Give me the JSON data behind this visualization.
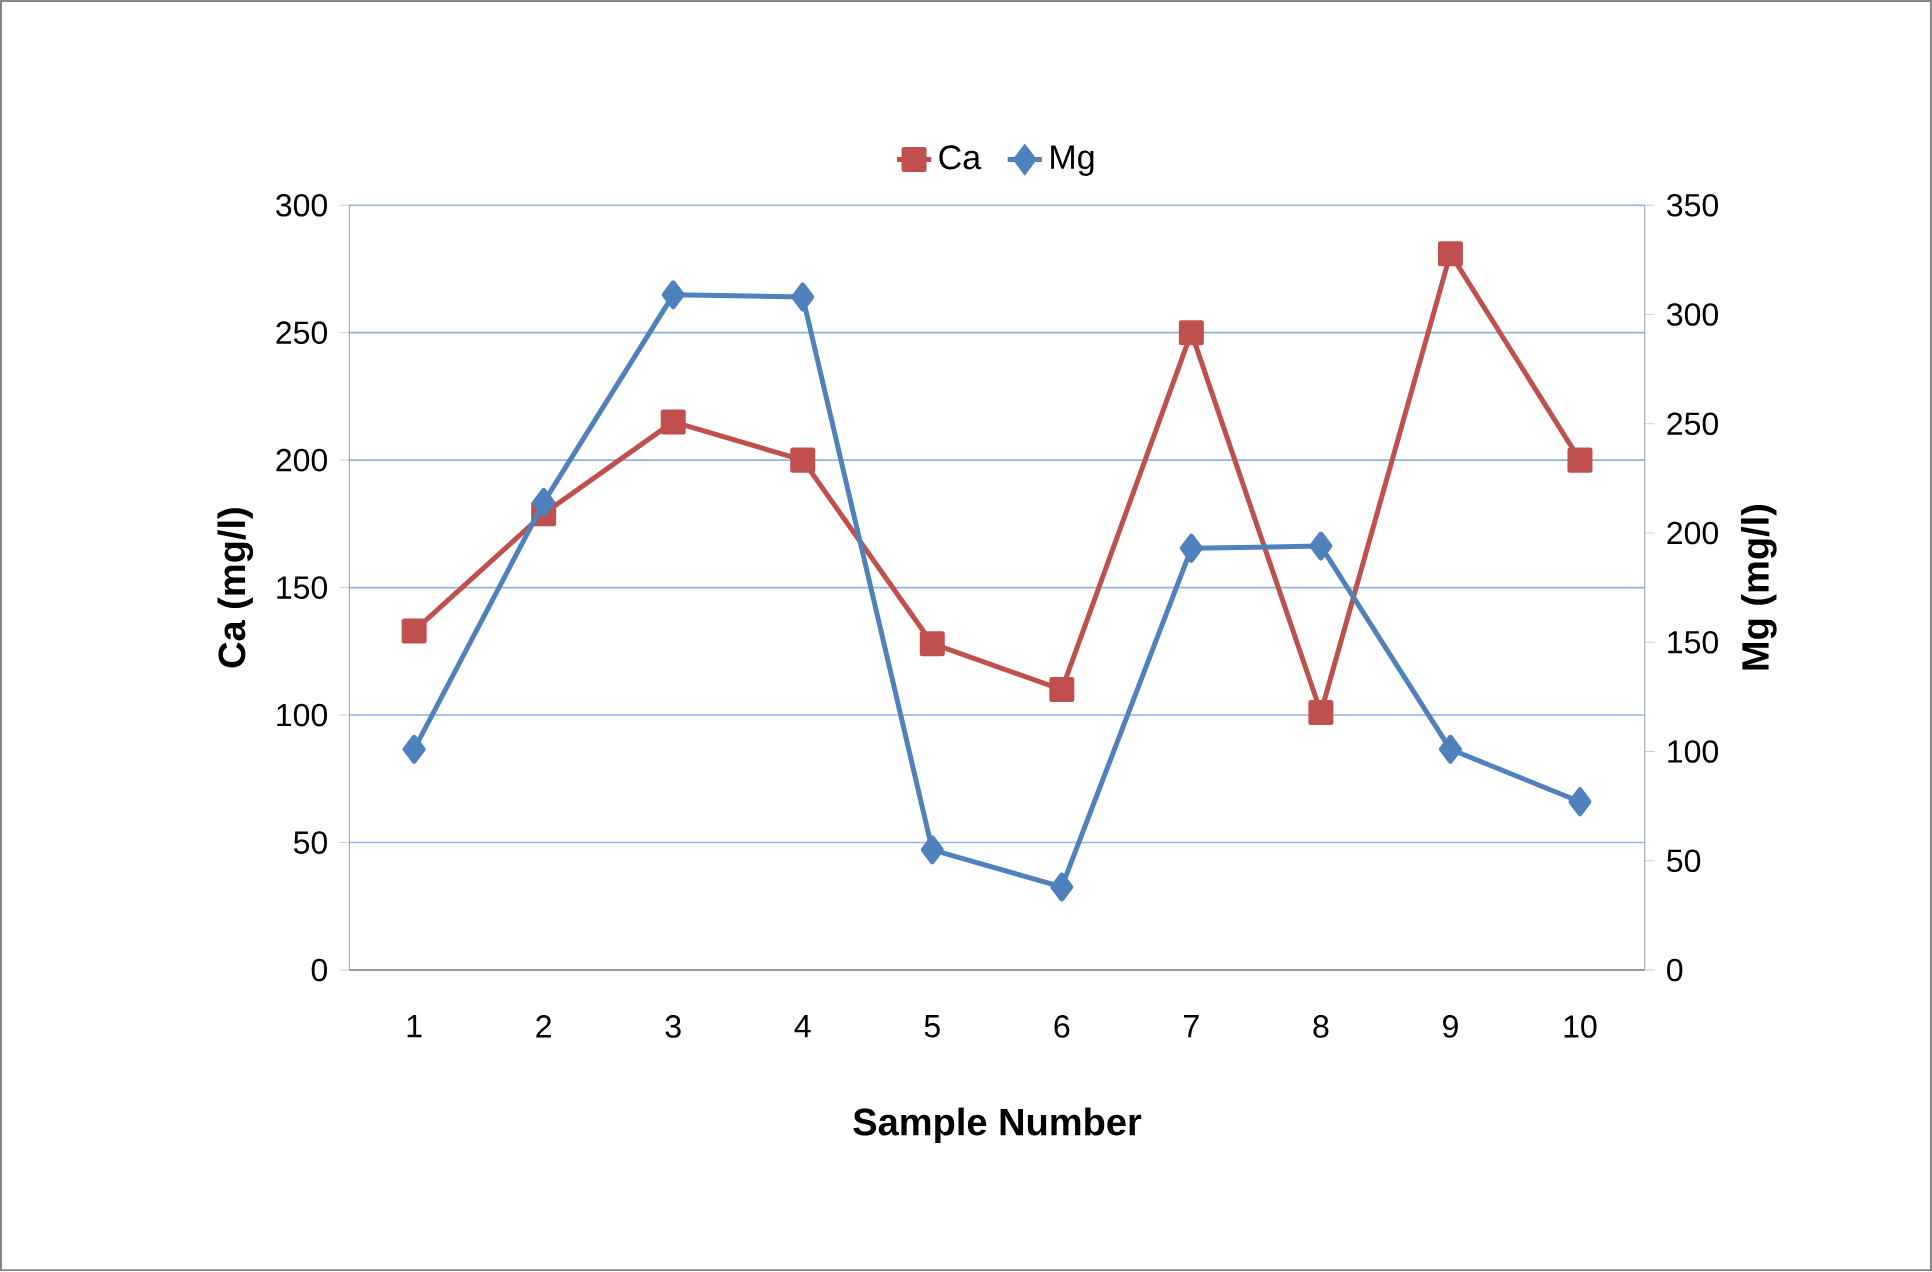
{
  "chart_data": {
    "type": "line",
    "xlabel": "Sample Number",
    "ylabel": "Ca (mg/l)",
    "y2label": "Mg (mg/l)",
    "categories": [
      "1",
      "2",
      "3",
      "4",
      "5",
      "6",
      "7",
      "8",
      "9",
      "10"
    ],
    "series": [
      {
        "name": "Ca",
        "color": "#c0504d",
        "marker": "square",
        "values": [
          133,
          179,
          215,
          200,
          128,
          110,
          250,
          101,
          281,
          200
        ]
      },
      {
        "name": "Mg",
        "color": "#4f81bd",
        "marker": "diamond",
        "axis": "y2",
        "values": [
          101,
          214,
          309,
          308,
          55,
          38,
          193,
          194,
          101,
          77
        ]
      }
    ],
    "ylim": [
      0,
      300
    ],
    "yticks": [
      0,
      50,
      100,
      150,
      200,
      250,
      300
    ],
    "y2lim": [
      0,
      350
    ],
    "y2ticks": [
      0,
      50,
      100,
      150,
      200,
      250,
      300,
      350
    ],
    "grid": "y",
    "legend": "top",
    "line_style": "solid"
  }
}
